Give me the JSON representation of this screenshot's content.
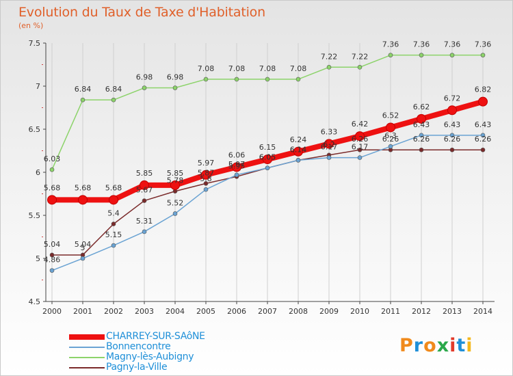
{
  "title": "Evolution du Taux de Taxe d'Habitation",
  "unit": "(en %)",
  "chart_data": {
    "type": "line",
    "x": [
      "2000",
      "2001",
      "2002",
      "2003",
      "2004",
      "2005",
      "2006",
      "2007",
      "2008",
      "2009",
      "2010",
      "2011",
      "2012",
      "2013",
      "2014"
    ],
    "ylim": [
      4.5,
      7.5
    ],
    "yticks": [
      "4.5",
      "5",
      "5.5",
      "6",
      "6.5",
      "7",
      "7.5"
    ],
    "grid": "vertical",
    "legend_position": "bottom-left",
    "series": [
      {
        "name": "Magny-lès-Aubigny",
        "color": "#8cd36a",
        "values": [
          6.03,
          6.84,
          6.84,
          6.98,
          6.98,
          7.08,
          7.08,
          7.08,
          7.08,
          7.22,
          7.22,
          7.36,
          7.36,
          7.36,
          7.36
        ]
      },
      {
        "name": "Pagny-la-Ville",
        "color": "#7a2a2a",
        "values": [
          5.04,
          5.04,
          5.4,
          5.67,
          5.78,
          5.87,
          5.95,
          6.05,
          6.14,
          6.2,
          6.26,
          6.26,
          6.26,
          6.26,
          6.26
        ]
      },
      {
        "name": "Bonnencontre",
        "color": "#6aa3d3",
        "values": [
          4.86,
          5.0,
          5.15,
          5.31,
          5.52,
          5.8,
          5.97,
          6.05,
          6.14,
          6.17,
          6.17,
          6.3,
          6.43,
          6.43,
          6.43
        ]
      },
      {
        "name": "CHARREY-SUR-SAôNE",
        "color": "#ee1111",
        "values": [
          5.68,
          5.68,
          5.68,
          5.85,
          5.85,
          5.97,
          6.06,
          6.15,
          6.24,
          6.33,
          6.42,
          6.52,
          6.62,
          6.72,
          6.82
        ]
      }
    ],
    "point_labels": {
      "Magny-lès-Aubigny": [
        "6.03",
        "6.84",
        "6.84",
        "6.98",
        "6.98",
        "7.08",
        "7.08",
        "7.08",
        "7.08",
        "7.22",
        "7.22",
        "7.36",
        "7.36",
        "7.36",
        "7.36"
      ],
      "Pagny-la-Ville": [
        "5.04",
        "5.04",
        "5.4",
        "5.67",
        "5.78",
        "5.87",
        "5.95",
        "6.05",
        "6.14",
        "6.2",
        "6.26",
        "6.26",
        "6.26",
        "6.26",
        "6.26"
      ],
      "Bonnencontre": [
        "4.86",
        "5",
        "5.15",
        "5.31",
        "5.52",
        "5.8",
        "5.97",
        "6.05",
        "6.14",
        "6.17",
        "6.17",
        "6.3",
        "6.43",
        "6.43",
        "6.43"
      ],
      "CHARREY-SUR-SAôNE": [
        "5.68",
        "5.68",
        "5.68",
        "5.85",
        "5.85",
        "5.97",
        "6.06",
        "6.15",
        "6.24",
        "6.33",
        "6.42",
        "6.52",
        "6.62",
        "6.72",
        "6.82"
      ]
    }
  },
  "legend": [
    {
      "label": "CHARREY-SUR-SAôNE",
      "color": "#ee1111"
    },
    {
      "label": "Bonnencontre",
      "color": "#6aa3d3"
    },
    {
      "label": "Magny-lès-Aubigny",
      "color": "#8cd36a"
    },
    {
      "label": "Pagny-la-Ville",
      "color": "#7a2a2a"
    }
  ],
  "logo": {
    "letters": [
      "P",
      "r",
      "o",
      "x",
      "i",
      "t",
      "i"
    ],
    "colors": [
      "#f08a1c",
      "#1e8fd8",
      "#f08a1c",
      "#2aa84a",
      "#e23a2a",
      "#1e8fd8",
      "#f3b81c"
    ]
  }
}
